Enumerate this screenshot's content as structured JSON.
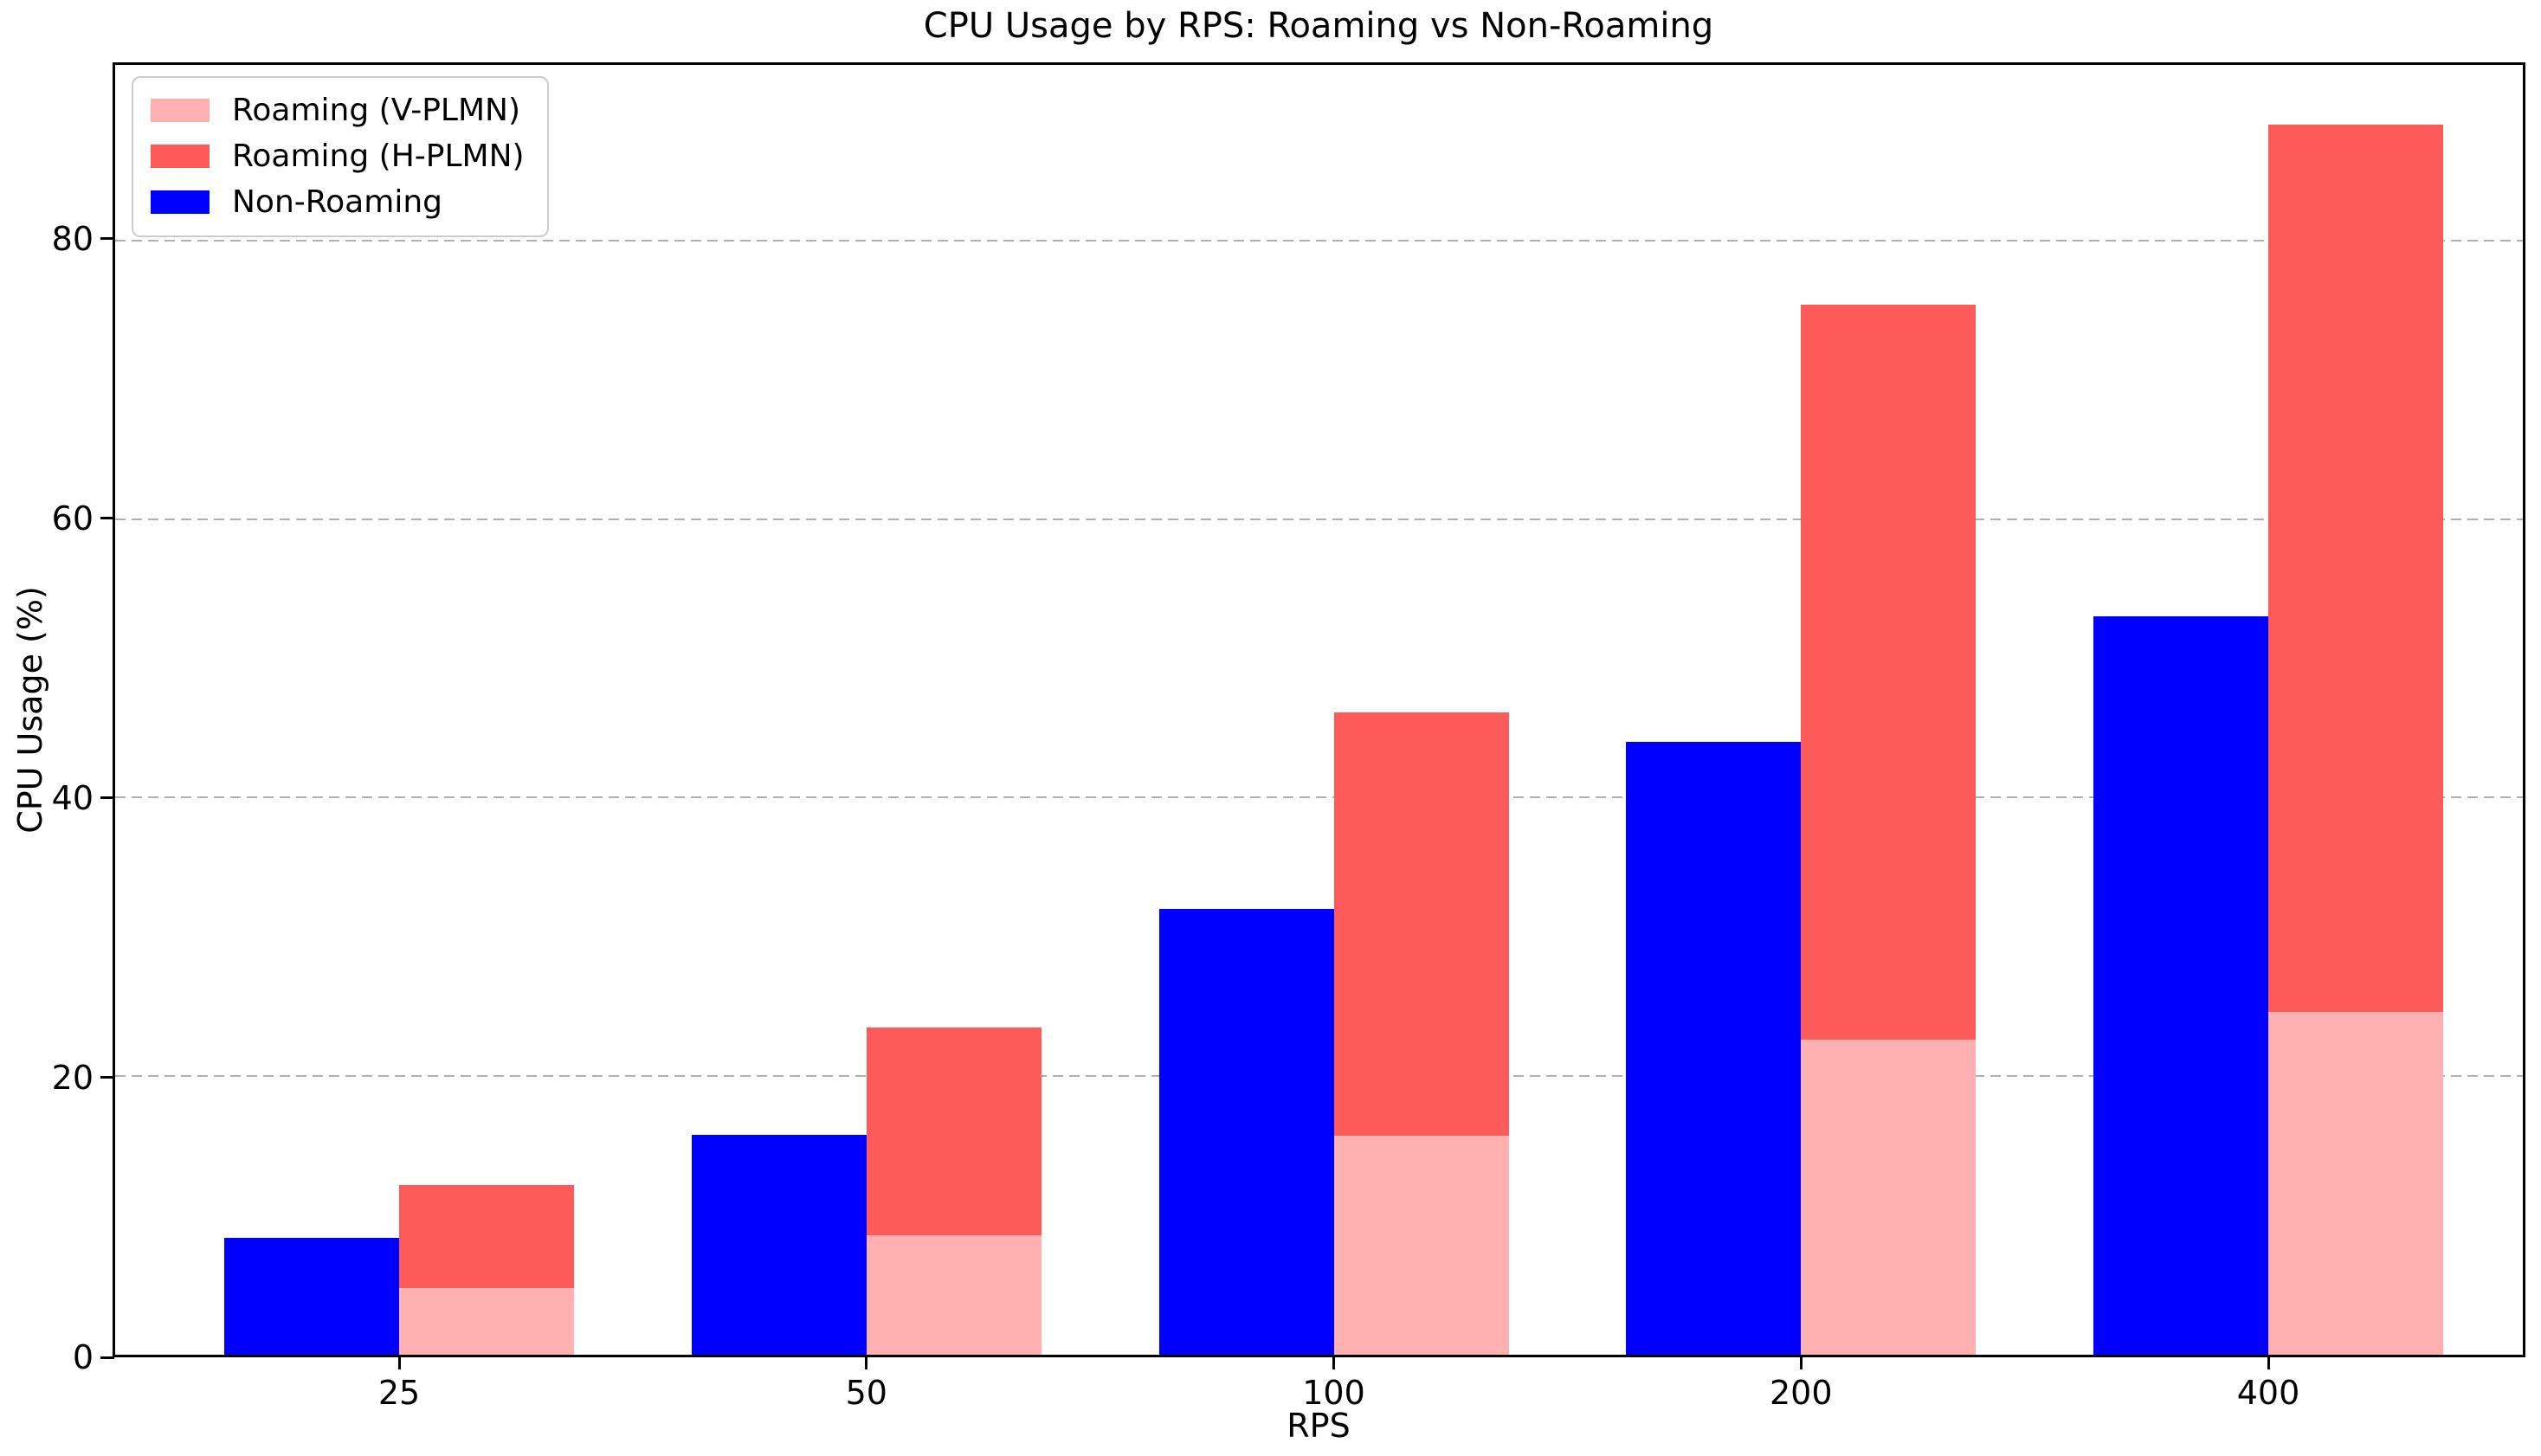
{
  "title": "CPU Usage by RPS: Roaming vs Non-Roaming",
  "chart_data": {
    "type": "bar",
    "title": "CPU Usage by RPS: Roaming vs Non-Roaming",
    "xlabel": "RPS",
    "ylabel": "CPU Usage (%)",
    "categories": [
      "25",
      "50",
      "100",
      "200",
      "400"
    ],
    "series": [
      {
        "name": "Non-Roaming",
        "color": "#0000ff",
        "stack": "non-roaming",
        "values": [
          8.4,
          15.8,
          32.0,
          44.0,
          53.0
        ]
      },
      {
        "name": "Roaming (V-PLMN)",
        "color": "#ffb0b0",
        "stack": "roaming",
        "values": [
          4.8,
          8.6,
          15.7,
          22.6,
          24.6
        ]
      },
      {
        "name": "Roaming (H-PLMN)",
        "color": "#ff5a5a",
        "stack": "roaming",
        "values": [
          7.4,
          14.9,
          30.4,
          52.8,
          63.7
        ]
      }
    ],
    "roaming_stack_totals": [
      12.2,
      23.5,
      46.1,
      75.4,
      88.3
    ],
    "y_ticks": [
      0,
      20,
      40,
      60,
      80
    ],
    "ylim": [
      0,
      92.6
    ],
    "grid": "horizontal dashed gray lines at y ticks, behind bars",
    "legend_position": "upper left",
    "legend": [
      {
        "label": "Roaming (V-PLMN)",
        "color": "#ffb0b0"
      },
      {
        "label": "Roaming (H-PLMN)",
        "color": "#ff5a5a"
      },
      {
        "label": "Non-Roaming",
        "color": "#0000ff"
      }
    ],
    "colors": {
      "non_roaming": "#0000ff",
      "roaming_v_plmn": "#ffb0b0",
      "roaming_h_plmn": "#ff5a5a",
      "gridline": "#b0b0b0",
      "axis": "#000000",
      "legend_border": "#cccccc"
    }
  }
}
